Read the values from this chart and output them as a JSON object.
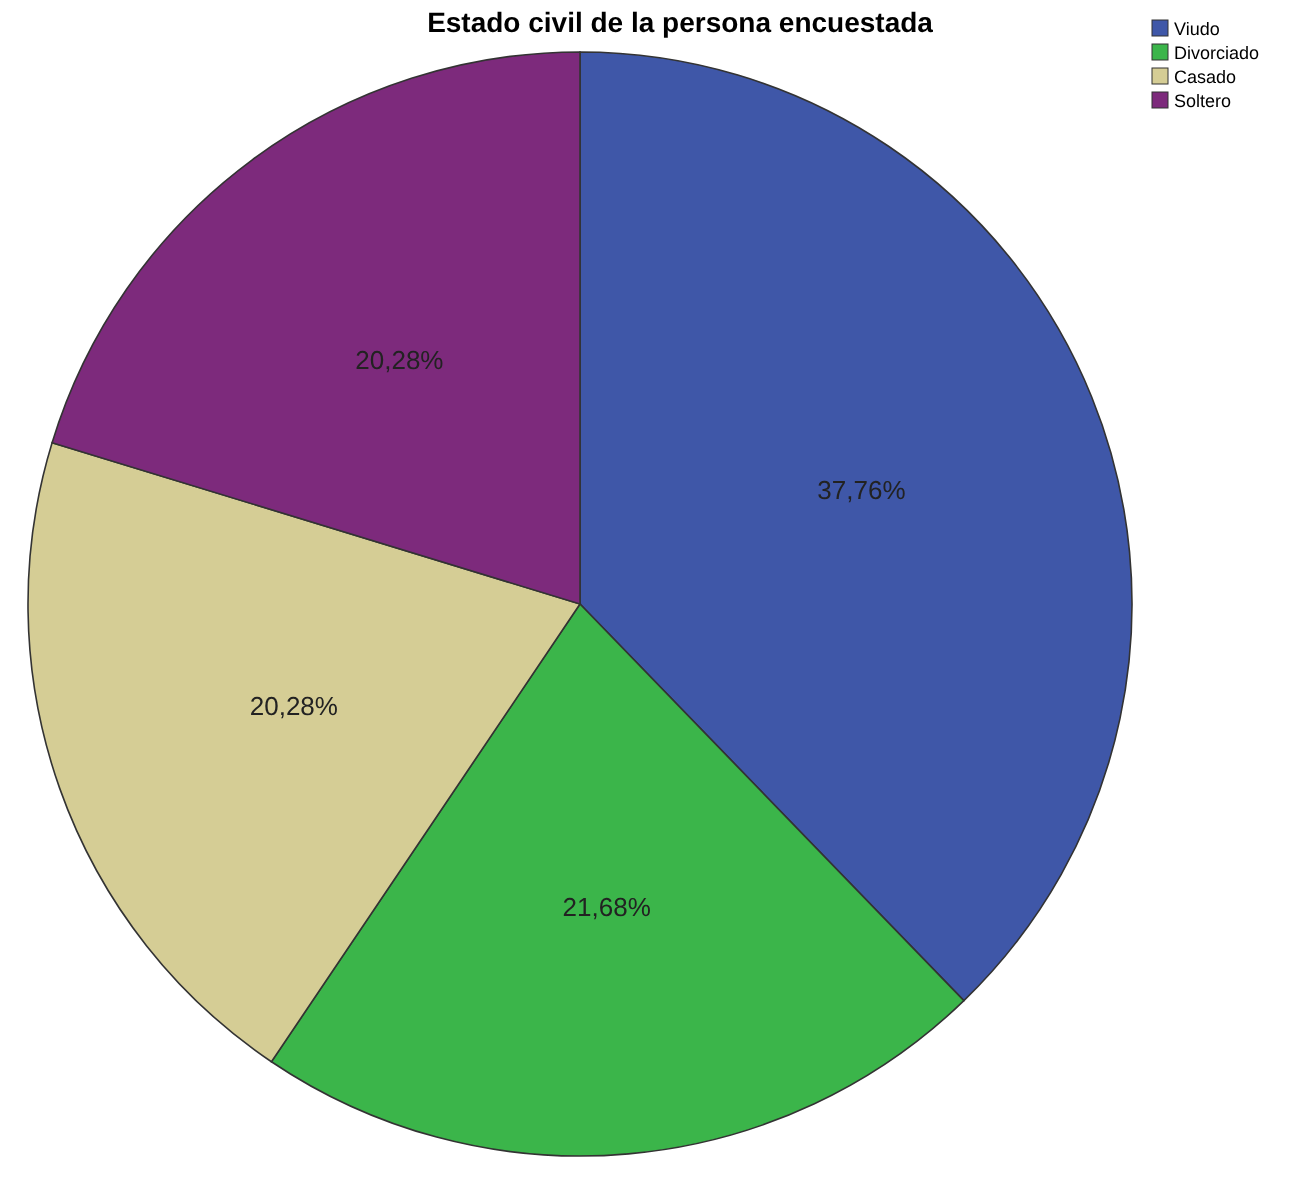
{
  "chart_data": {
    "type": "pie",
    "title": "Estado civil de la persona encuestada",
    "categories": [
      "Viudo",
      "Divorciado",
      "Casado",
      "Soltero"
    ],
    "values": [
      37.76,
      21.68,
      20.28,
      20.28
    ],
    "colors": [
      "#3f57a8",
      "#3bb54a",
      "#d5cd95",
      "#7d2a7c"
    ],
    "value_labels": [
      "37,76%",
      "21,68%",
      "20,28%",
      "20,28%"
    ],
    "legend": "top right"
  }
}
